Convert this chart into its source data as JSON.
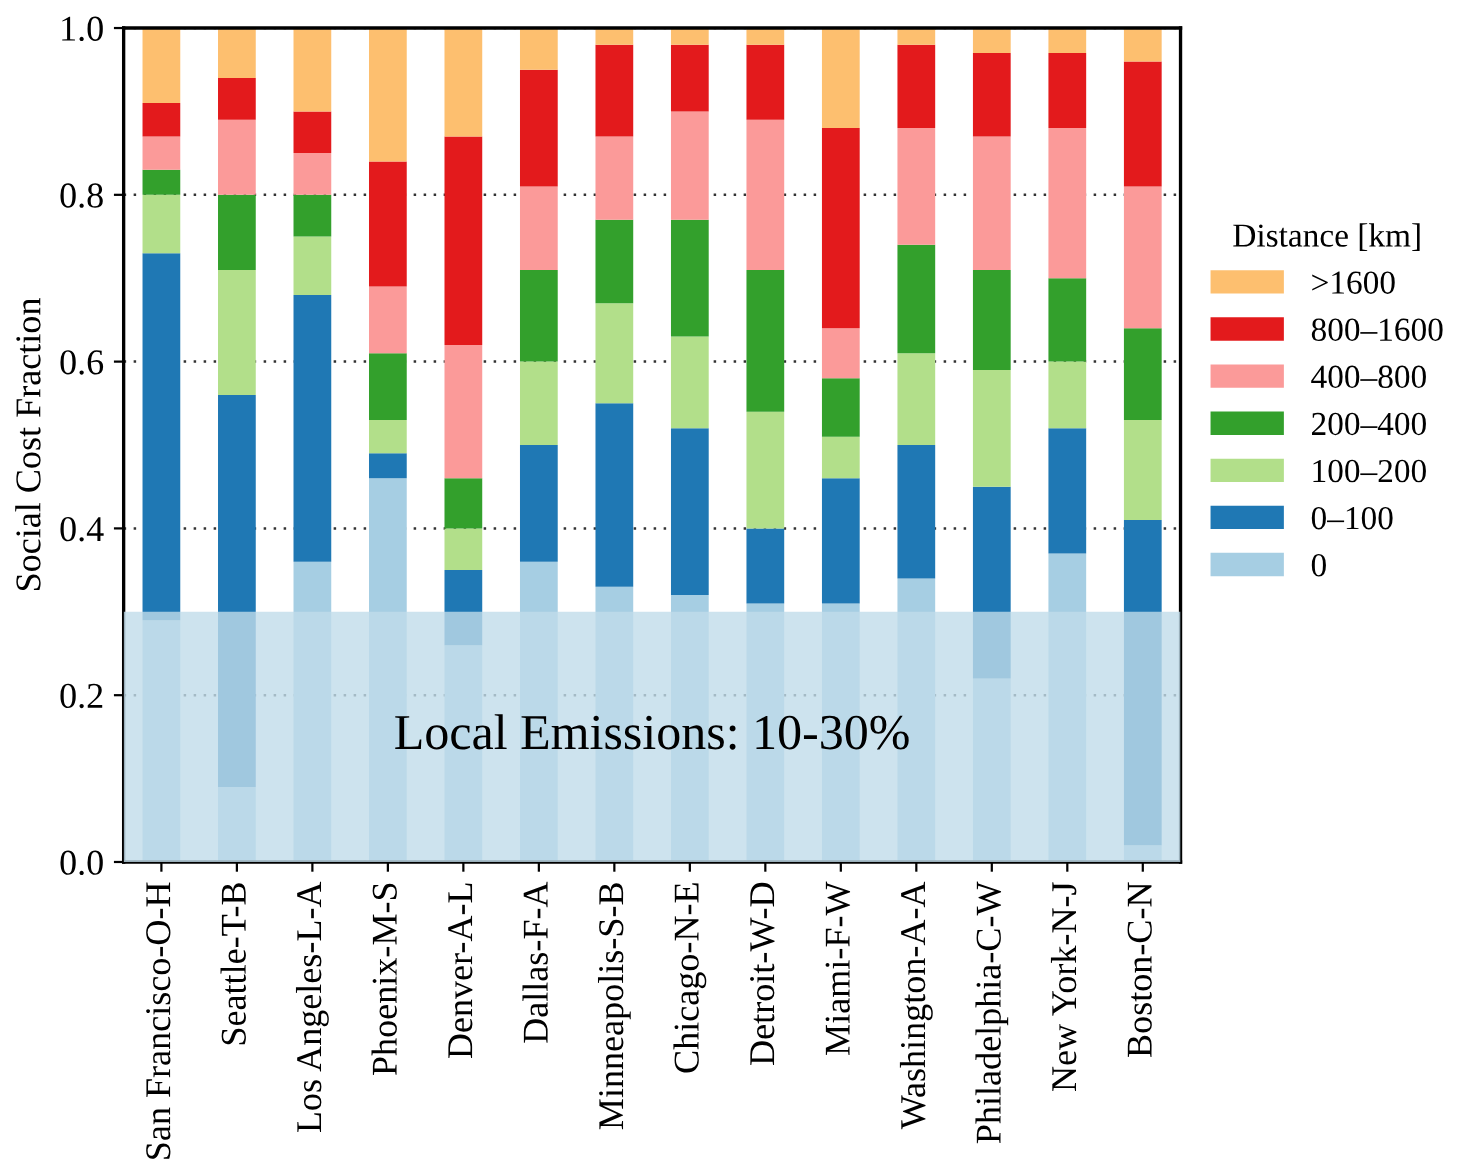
{
  "chart_data": {
    "type": "bar",
    "stacked": true,
    "ylabel": "Social Cost Fraction",
    "legend_title": "Distance [km]",
    "legend": "right",
    "grid": "y",
    "categories": [
      "San Francisco-O-H",
      "Seattle-T-B",
      "Los Angeles-L-A",
      "Phoenix-M-S",
      "Denver-A-L",
      "Dallas-F-A",
      "Minneapolis-S-B",
      "Chicago-N-E",
      "Detroit-W-D",
      "Miami-F-W",
      "Washington-A-A",
      "Philadelphia-C-W",
      "New York-N-J",
      "Boston-C-N"
    ],
    "series": [
      {
        "name": "0",
        "color": "#a6cee3",
        "values": [
          0.29,
          0.09,
          0.36,
          0.46,
          0.26,
          0.36,
          0.33,
          0.32,
          0.31,
          0.31,
          0.34,
          0.22,
          0.37,
          0.02
        ]
      },
      {
        "name": "0–100",
        "color": "#1f78b4",
        "values": [
          0.44,
          0.47,
          0.32,
          0.03,
          0.09,
          0.14,
          0.22,
          0.2,
          0.09,
          0.15,
          0.16,
          0.23,
          0.15,
          0.39
        ]
      },
      {
        "name": "100–200",
        "color": "#b2df8a",
        "values": [
          0.07,
          0.15,
          0.07,
          0.04,
          0.05,
          0.1,
          0.12,
          0.11,
          0.14,
          0.05,
          0.11,
          0.14,
          0.08,
          0.12
        ]
      },
      {
        "name": "200–400",
        "color": "#33a02c",
        "values": [
          0.03,
          0.09,
          0.05,
          0.08,
          0.06,
          0.11,
          0.1,
          0.14,
          0.17,
          0.07,
          0.13,
          0.12,
          0.1,
          0.11
        ]
      },
      {
        "name": "400–800",
        "color": "#fb9a99",
        "values": [
          0.04,
          0.09,
          0.05,
          0.08,
          0.16,
          0.1,
          0.1,
          0.13,
          0.18,
          0.06,
          0.14,
          0.16,
          0.18,
          0.17
        ]
      },
      {
        "name": "800–1600",
        "color": "#e31a1c",
        "values": [
          0.04,
          0.05,
          0.05,
          0.15,
          0.25,
          0.14,
          0.11,
          0.08,
          0.09,
          0.24,
          0.1,
          0.1,
          0.09,
          0.15
        ]
      },
      {
        "name": ">1600",
        "color": "#fdbf6f",
        "values": [
          0.09,
          0.06,
          0.1,
          0.16,
          0.13,
          0.05,
          0.02,
          0.02,
          0.02,
          0.12,
          0.02,
          0.03,
          0.03,
          0.04
        ]
      }
    ],
    "ylim": [
      0,
      1
    ],
    "yticks": [
      {
        "value": 0,
        "label": "0.0"
      },
      {
        "value": 0.2,
        "label": "0.2"
      },
      {
        "value": 0.4,
        "label": "0.4"
      },
      {
        "value": 0.6,
        "label": "0.6"
      },
      {
        "value": 0.8,
        "label": "0.8"
      },
      {
        "value": 1,
        "label": "1.0"
      }
    ],
    "bands": [
      {
        "axis": "y",
        "from": 0,
        "to": 0.3,
        "label": "Local Emissions: 10-30%",
        "color": "#c0dcea"
      }
    ]
  }
}
